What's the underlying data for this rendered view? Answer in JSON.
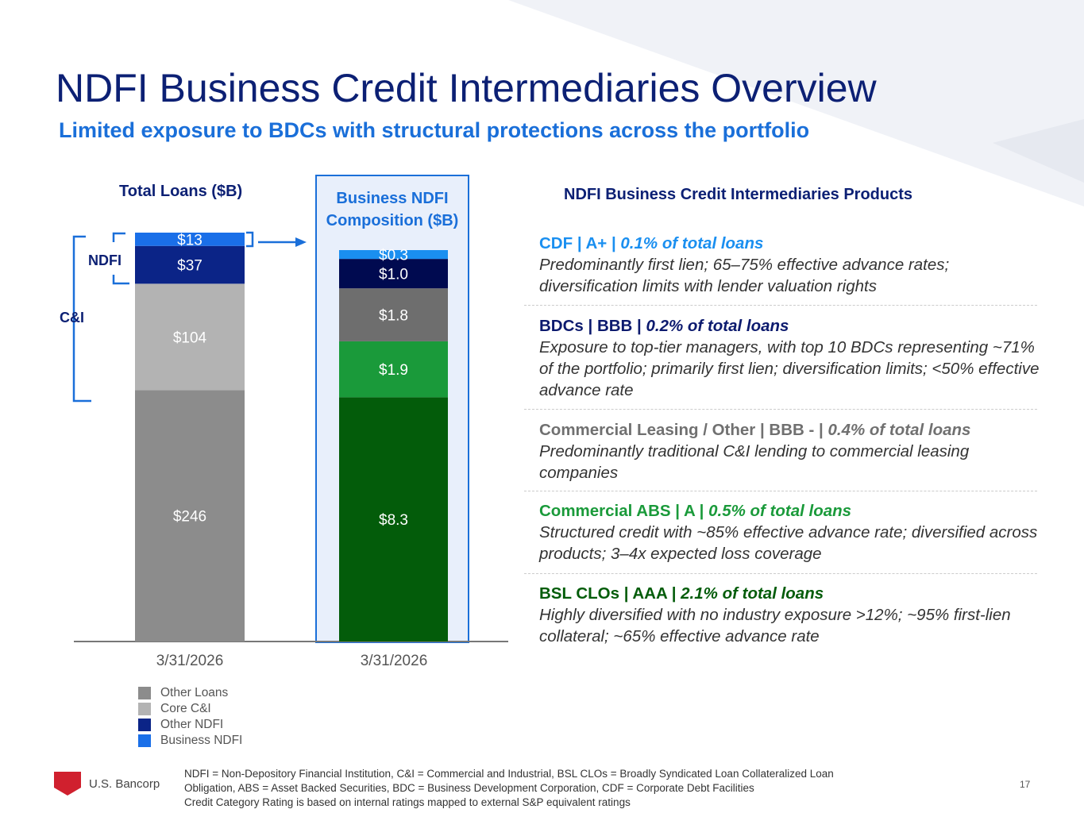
{
  "title": "NDFI Business Credit Intermediaries Overview",
  "subtitle": "Limited exposure to BDCs with structural protections across the portfolio",
  "chart_data": [
    {
      "type": "bar",
      "stacked": true,
      "title": "Total Loans ($B)",
      "categories": [
        "3/31/2026"
      ],
      "series": [
        {
          "name": "Other Loans",
          "values": [
            246
          ],
          "label": "$246",
          "color": "#8c8c8c"
        },
        {
          "name": "Core C&I",
          "values": [
            104
          ],
          "label": "$104",
          "color": "#b3b3b3"
        },
        {
          "name": "Other NDFI",
          "values": [
            37
          ],
          "label": "$37",
          "color": "#0b2487"
        },
        {
          "name": "Business NDFI",
          "values": [
            13
          ],
          "label": "$13",
          "color": "#1a6fe8"
        }
      ],
      "brackets": [
        "NDFI",
        "C&I"
      ]
    },
    {
      "type": "bar",
      "stacked": true,
      "title": "Business NDFI Composition ($B)",
      "categories": [
        "3/31/2026"
      ],
      "series": [
        {
          "name": "BSL CLOs",
          "values": [
            8.3
          ],
          "label": "$8.3",
          "color": "#035c0a"
        },
        {
          "name": "Commercial ABS",
          "values": [
            1.9
          ],
          "label": "$1.9",
          "color": "#1a9a3a"
        },
        {
          "name": "Commercial Leasing / Other",
          "values": [
            1.8
          ],
          "label": "$1.8",
          "color": "#6e6e6e"
        },
        {
          "name": "BDCs",
          "values": [
            1.0
          ],
          "label": "$1.0",
          "color": "#000a50"
        },
        {
          "name": "CDF",
          "values": [
            0.3
          ],
          "label": "$0.3",
          "color": "#1a8ff0"
        }
      ]
    }
  ],
  "legend": [
    {
      "label": "Other Loans",
      "color": "#8c8c8c"
    },
    {
      "label": "Core C&I",
      "color": "#b3b3b3"
    },
    {
      "label": "Other NDFI",
      "color": "#0b2487"
    },
    {
      "label": "Business NDFI",
      "color": "#1a6fe8"
    }
  ],
  "products_header": "NDFI Business Credit Intermediaries Products",
  "products": [
    {
      "head": "CDF | A+ | ",
      "pct": "0.1% of total loans",
      "desc": "Predominantly first lien; 65–75% effective advance rates; diversification limits with lender valuation rights",
      "color": "#1a8ff0"
    },
    {
      "head": "BDCs | BBB | ",
      "pct": "0.2% of total loans",
      "desc": "Exposure to top-tier managers, with top 10 BDCs representing ~71% of the portfolio; primarily first lien; diversification limits; <50% effective advance rate",
      "color": "#0c1a6e"
    },
    {
      "head": "Commercial Leasing / Other | BBB - | ",
      "pct": "0.4% of total loans",
      "desc": "Predominantly traditional C&I lending to commercial leasing companies",
      "color": "#707070"
    },
    {
      "head": "Commercial ABS | A | ",
      "pct": "0.5% of total loans",
      "desc": "Structured credit with ~85% effective advance rate; diversified across products; 3–4x expected loss coverage",
      "color": "#1a9a3a"
    },
    {
      "head": "BSL CLOs | AAA | ",
      "pct": "2.1% of total loans",
      "desc": "Highly diversified with no industry exposure >12%; ~95% first-lien collateral; ~65% effective advance rate",
      "color": "#035c0a"
    }
  ],
  "footnote": [
    "NDFI = Non-Depository Financial Institution, C&I = Commercial and Industrial, BSL CLOs = Broadly Syndicated Loan Collateralized Loan",
    "Obligation, ABS = Asset Backed Securities, BDC = Business Development Corporation, CDF = Corporate Debt Facilities",
    "Credit Category Rating is based on internal ratings mapped to external S&P equivalent ratings"
  ],
  "logo_text": "U.S. Bancorp",
  "page_number": "17"
}
